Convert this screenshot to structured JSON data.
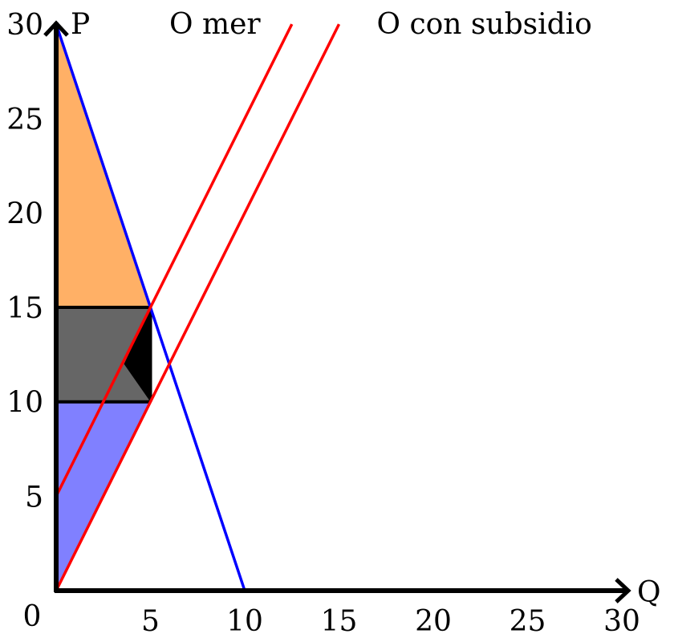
{
  "chart_data": {
    "type": "line",
    "xlim": [
      0,
      30
    ],
    "ylim": [
      0,
      30
    ],
    "xlabel": "Q",
    "ylabel": "P",
    "origin_label": "0",
    "x_ticks": [
      5,
      10,
      15,
      20,
      25,
      30
    ],
    "y_ticks": [
      5,
      10,
      15,
      20,
      25,
      30
    ],
    "grid": false,
    "series": [
      {
        "name": "",
        "color": "#0000ff",
        "points": [
          [
            0,
            30
          ],
          [
            10,
            0
          ]
        ]
      },
      {
        "name": "O mer",
        "color": "#ff0000",
        "points": [
          [
            0,
            5
          ],
          [
            12.5,
            30
          ]
        ]
      },
      {
        "name": "O con subsidio",
        "color": "#ff0000",
        "points": [
          [
            0,
            0
          ],
          [
            15,
            30
          ]
        ]
      }
    ],
    "series_labels": [
      {
        "text": "O mer",
        "at": [
          6,
          30
        ]
      },
      {
        "text": "O con subsidio",
        "at": [
          17,
          30
        ]
      }
    ],
    "regions": [
      {
        "name": "orange-area",
        "color": "#ffb066",
        "points": [
          [
            0,
            30
          ],
          [
            5,
            15
          ],
          [
            0,
            15
          ]
        ]
      },
      {
        "name": "gray-area",
        "color": "#666666",
        "points": [
          [
            0,
            15
          ],
          [
            5,
            15
          ],
          [
            5,
            10
          ],
          [
            0,
            10
          ]
        ]
      },
      {
        "name": "blue-area",
        "color": "#8080ff",
        "points": [
          [
            0,
            10
          ],
          [
            5,
            10
          ],
          [
            0,
            0
          ]
        ]
      },
      {
        "name": "black-triangle",
        "color": "#000000",
        "points": [
          [
            5,
            15
          ],
          [
            5,
            10
          ],
          [
            3.6,
            12
          ]
        ]
      }
    ],
    "segments": [
      {
        "name": "price-line-15",
        "points": [
          [
            0,
            15
          ],
          [
            5,
            15
          ]
        ]
      },
      {
        "name": "price-line-10",
        "points": [
          [
            0,
            10
          ],
          [
            5,
            10
          ]
        ]
      },
      {
        "name": "quantity-line-5",
        "points": [
          [
            5,
            15
          ],
          [
            5,
            10
          ]
        ]
      }
    ]
  }
}
